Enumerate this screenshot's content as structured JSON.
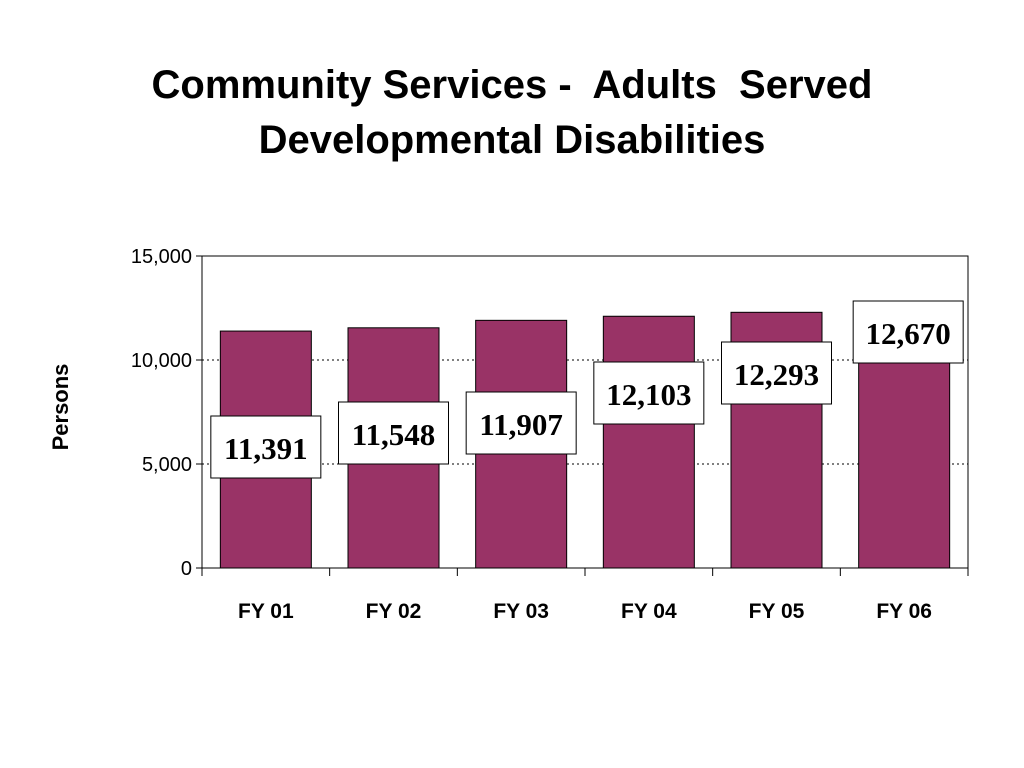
{
  "title_lines": [
    "Community Services -  Adults  Served",
    "Developmental Disabilities"
  ],
  "chart_data": {
    "type": "bar",
    "title": "Community Services -  Adults  Served Developmental Disabilities",
    "xlabel": "",
    "ylabel": "Persons",
    "categories": [
      "FY 01",
      "FY 02",
      "FY 03",
      "FY 04",
      "FY 05",
      "FY 06"
    ],
    "values": [
      11391,
      11548,
      11907,
      12103,
      12293,
      12670
    ],
    "data_labels": [
      "11,391",
      "11,548",
      "11,907",
      "12,103",
      "12,293",
      "12,670"
    ],
    "ylim": [
      0,
      15000
    ],
    "yticks": [
      0,
      5000,
      10000,
      15000
    ],
    "ytick_labels": [
      "0",
      "5,000",
      "10,000",
      "15,000"
    ],
    "grid": "dotted horizontal",
    "legend": "none",
    "bar_color": "#993366"
  }
}
